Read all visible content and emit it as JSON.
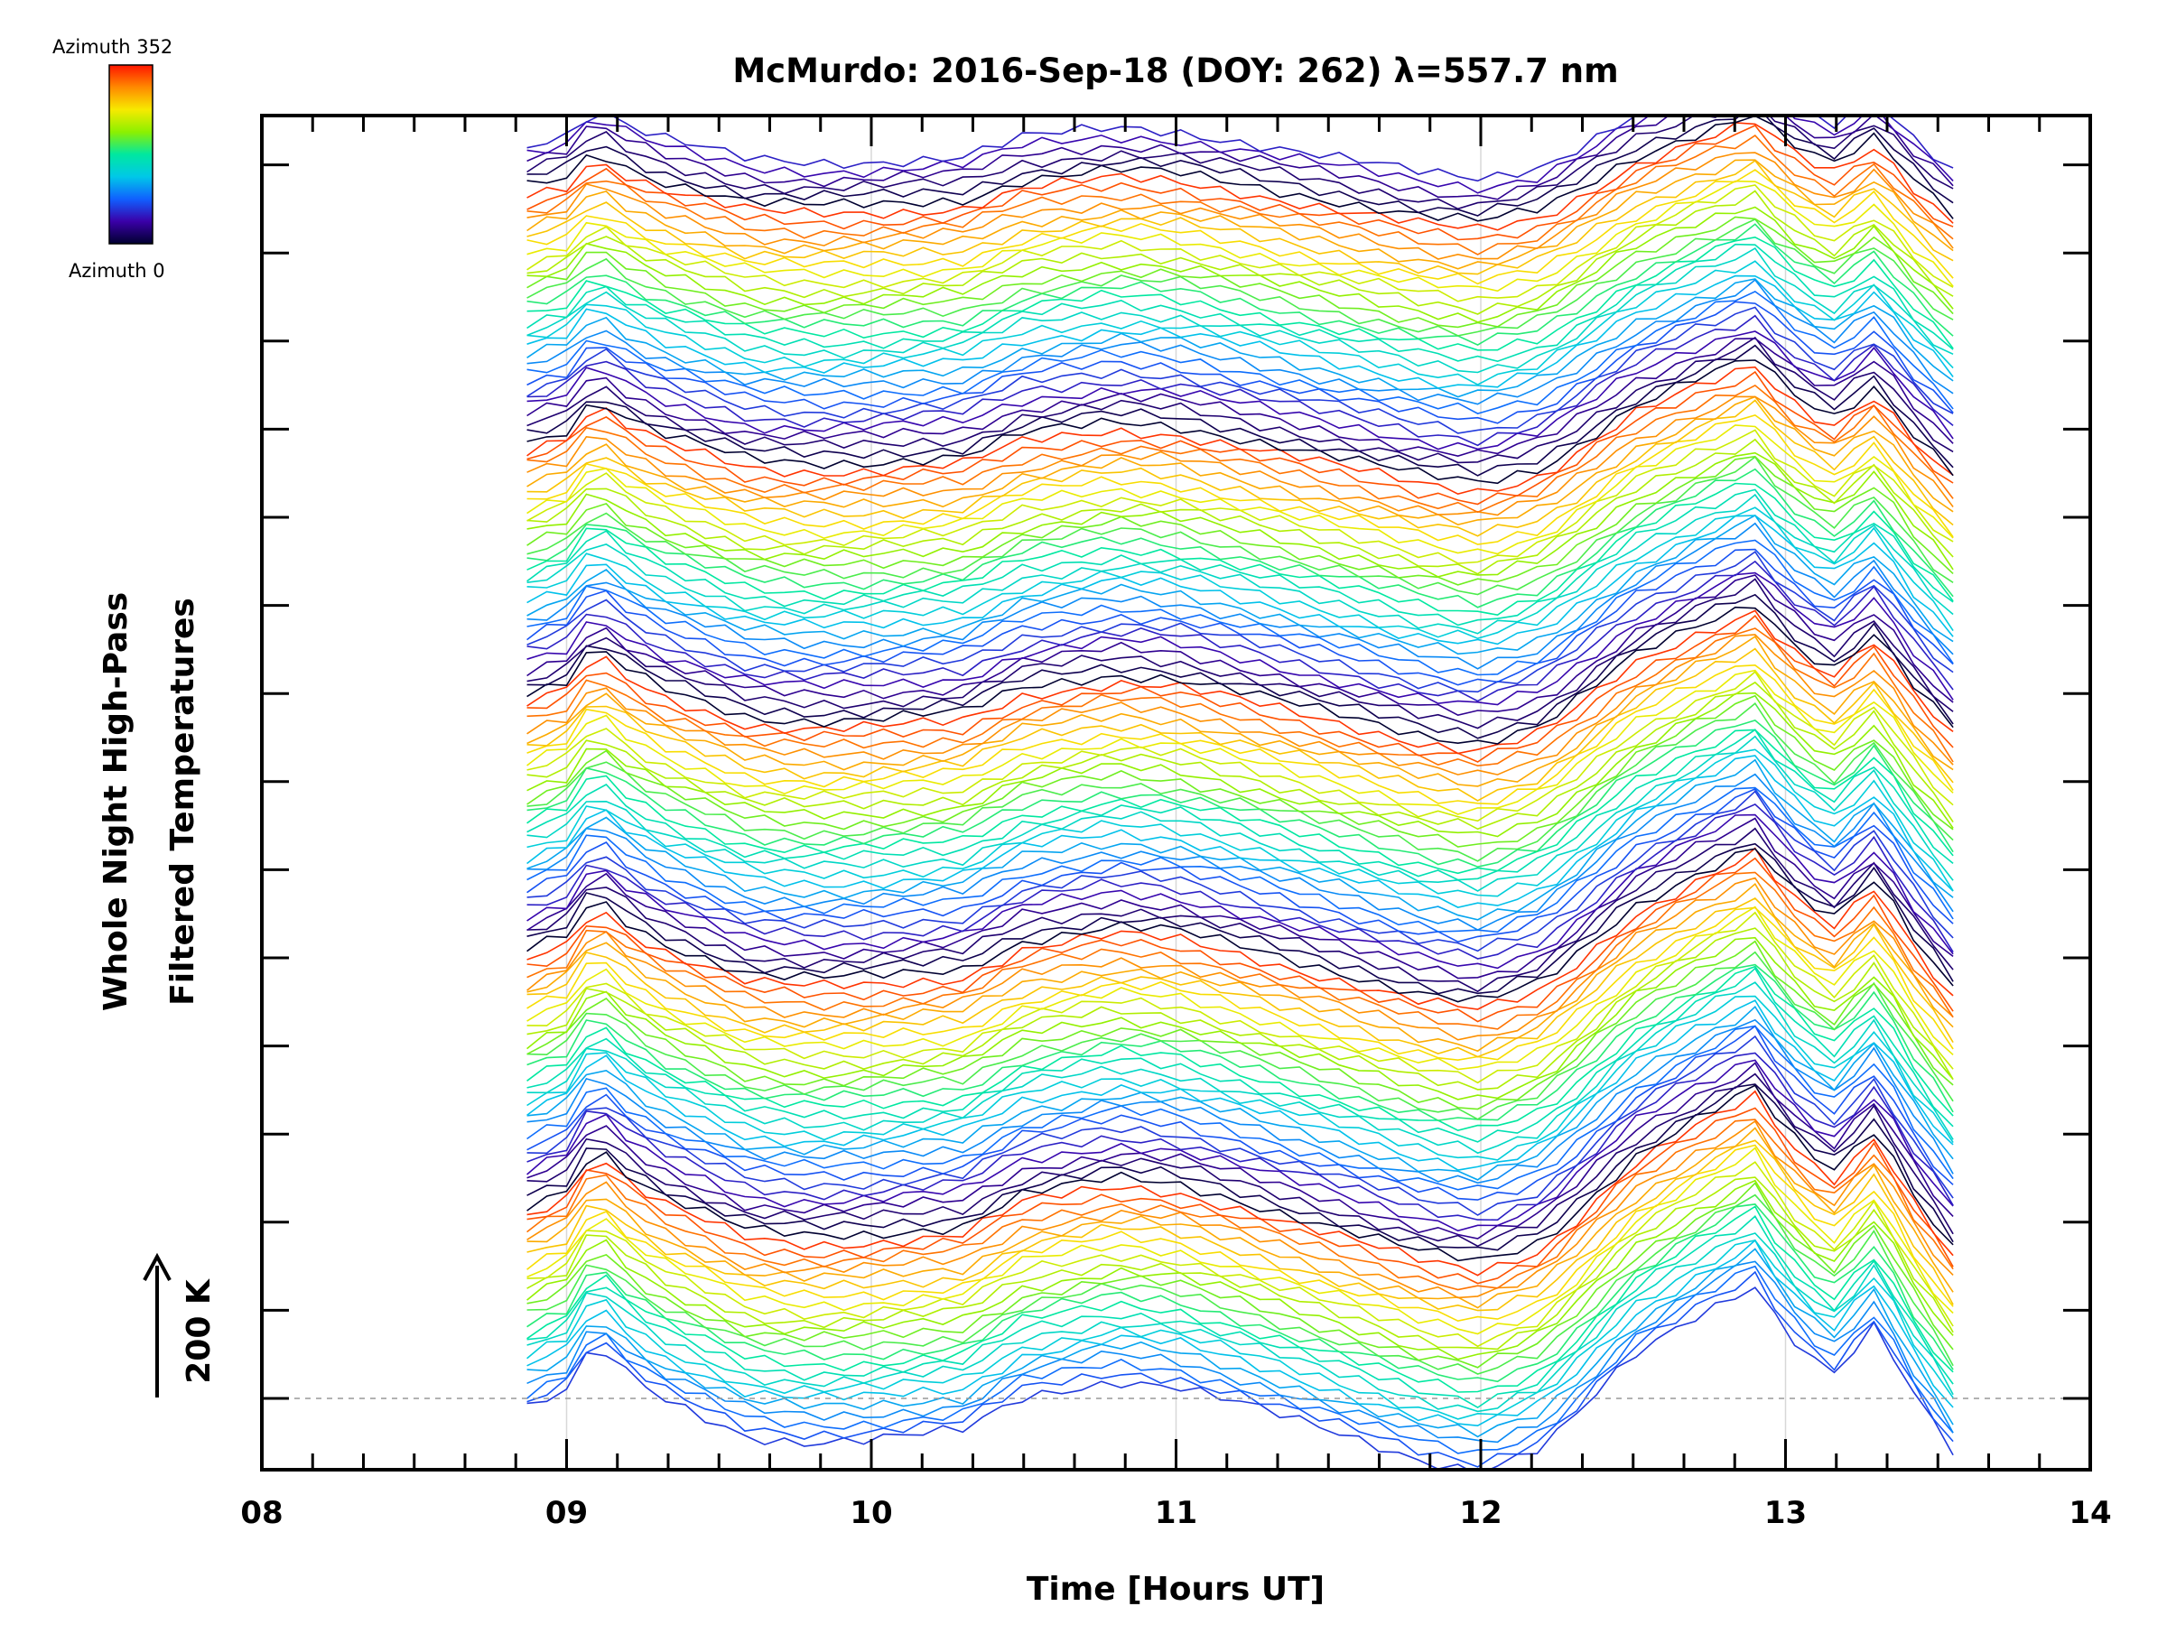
{
  "chart_data": {
    "type": "line",
    "title": "McMurdo: 2016-Sep-18 (DOY: 262) λ=557.7 nm",
    "xlabel": "Time [Hours UT]",
    "ylabel_line1": "Whole Night High-Pass",
    "ylabel_line2": "Filtered Temperatures",
    "scale_label": "200 K",
    "xlim": [
      8,
      14
    ],
    "x_ticks": [
      "08",
      "09",
      "10",
      "11",
      "12",
      "13",
      "14"
    ],
    "colorbar": {
      "top_label": "Azimuth  352",
      "bottom_label": "Azimuth  0",
      "colors": [
        "#ff1500",
        "#ff8a00",
        "#f7ea00",
        "#8cf000",
        "#00e8a0",
        "#00c8e8",
        "#1060ff",
        "#3a00a8",
        "#000030"
      ]
    },
    "series_description": "Stacked high-pass filtered temperature traces, 5 groups of azimuth scans, each offset vertically",
    "time_range": [
      8.87,
      13.55
    ],
    "common_profile": {
      "x": [
        8.87,
        9.0,
        9.1,
        9.15,
        9.3,
        9.6,
        9.8,
        10.0,
        10.3,
        10.5,
        10.8,
        11.0,
        11.2,
        11.5,
        11.8,
        12.0,
        12.2,
        12.3,
        12.5,
        12.7,
        12.9,
        13.0,
        13.15,
        13.3,
        13.4,
        13.55
      ],
      "y": [
        0,
        15,
        60,
        40,
        10,
        -25,
        -30,
        -28,
        -20,
        10,
        25,
        20,
        5,
        -20,
        -45,
        -55,
        -35,
        -10,
        45,
        80,
        110,
        70,
        30,
        75,
        20,
        -40
      ]
    },
    "groups": [
      {
        "name": "group-1",
        "base_offset": 0
      },
      {
        "name": "group-2",
        "base_offset": 1
      },
      {
        "name": "group-3",
        "base_offset": 2
      },
      {
        "name": "group-4",
        "base_offset": 3
      },
      {
        "name": "group-5",
        "base_offset": 4
      }
    ],
    "baseline": "dashed line at bottom reference"
  }
}
